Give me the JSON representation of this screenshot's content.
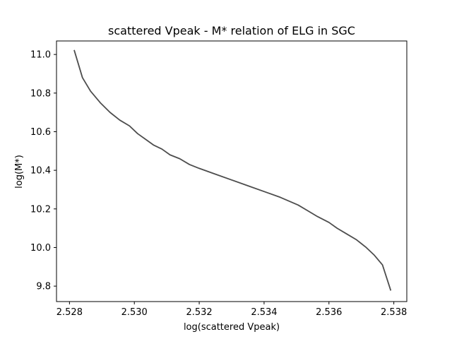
{
  "chart_data": {
    "type": "line",
    "title": "scattered Vpeak - M* relation of ELG in SGC",
    "xlabel": "log(scattered Vpeak)",
    "ylabel": "log(M*)",
    "xlim": [
      2.5276,
      2.5384
    ],
    "ylim": [
      9.72,
      11.07
    ],
    "xticks": [
      2.528,
      2.53,
      2.532,
      2.534,
      2.536,
      2.538
    ],
    "xtick_labels": [
      "2.528",
      "2.530",
      "2.532",
      "2.534",
      "2.536",
      "2.538"
    ],
    "yticks": [
      9.8,
      10.0,
      10.2,
      10.4,
      10.6,
      10.8,
      11.0
    ],
    "ytick_labels": [
      "9.8",
      "10.0",
      "10.2",
      "10.4",
      "10.6",
      "10.8",
      "11.0"
    ],
    "grid": false,
    "series": [
      {
        "color": "#4d4d4d",
        "x": [
          2.52815,
          2.5284,
          2.52865,
          2.52895,
          2.52925,
          2.52955,
          2.52985,
          2.5301,
          2.53035,
          2.5306,
          2.53085,
          2.5311,
          2.5314,
          2.5317,
          2.532,
          2.5325,
          2.533,
          2.5335,
          2.534,
          2.5345,
          2.53505,
          2.53535,
          2.53565,
          2.536,
          2.53625,
          2.53655,
          2.53685,
          2.53715,
          2.5374,
          2.53765,
          2.5379
        ],
        "y": [
          11.02,
          10.88,
          10.81,
          10.75,
          10.7,
          10.66,
          10.63,
          10.59,
          10.56,
          10.53,
          10.51,
          10.48,
          10.46,
          10.43,
          10.41,
          10.38,
          10.35,
          10.32,
          10.29,
          10.26,
          10.22,
          10.19,
          10.16,
          10.13,
          10.1,
          10.07,
          10.04,
          10.0,
          9.96,
          9.91,
          9.78
        ]
      }
    ]
  }
}
